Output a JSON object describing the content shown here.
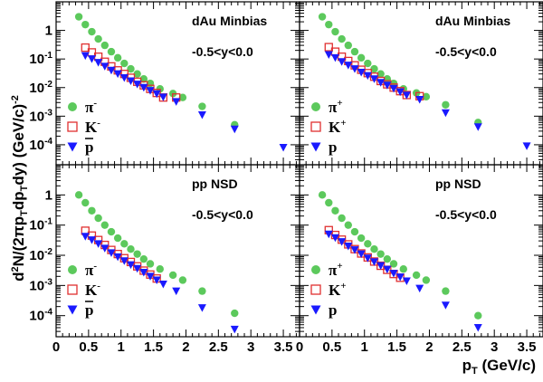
{
  "chart_data": {
    "type": "scatter",
    "yscale": "log",
    "xlim": [
      0,
      3.75
    ],
    "ylim": [
      2e-05,
      10
    ],
    "x_ticks": [
      "0",
      "0.5",
      "1",
      "1.5",
      "2",
      "2.5",
      "3",
      "3.5"
    ],
    "y_ticks": [
      {
        "value": 1,
        "base": "1",
        "exp": ""
      },
      {
        "value": 0.1,
        "base": "10",
        "exp": "-1"
      },
      {
        "value": 0.01,
        "base": "10",
        "exp": "-2"
      },
      {
        "value": 0.001,
        "base": "10",
        "exp": "-3"
      },
      {
        "value": 0.0001,
        "base": "10",
        "exp": "-4"
      }
    ],
    "xlabel": {
      "main": "p",
      "sub": "T",
      "rest": " (GeV/c)"
    },
    "ylabel": "d²N/(2πp_T dp_T dy) (GeV/c)⁻²",
    "colors": {
      "pion": "#5cc95c",
      "kaon": "#e03030",
      "proton": "#1a1aff"
    },
    "panels": [
      {
        "id": "dau-neg",
        "system": "dAu Minbias",
        "rapidity": "-0.5<y<0.0",
        "legend": [
          {
            "label": "π",
            "sup": "-",
            "bar": false,
            "marker": "circle",
            "species": "pion"
          },
          {
            "label": "K",
            "sup": "-",
            "bar": false,
            "marker": "square",
            "species": "kaon"
          },
          {
            "label": "p",
            "sup": "",
            "bar": true,
            "marker": "triangle",
            "species": "proton"
          }
        ],
        "series": [
          {
            "name": "π-",
            "marker": "circle",
            "species": "pion",
            "x": [
              0.35,
              0.45,
              0.55,
              0.65,
              0.75,
              0.85,
              0.95,
              1.05,
              1.15,
              1.25,
              1.35,
              1.45,
              1.6,
              1.8,
              1.95,
              2.25,
              2.75
            ],
            "y": [
              3.0,
              1.6,
              0.9,
              0.5,
              0.3,
              0.18,
              0.11,
              0.07,
              0.045,
              0.03,
              0.02,
              0.014,
              0.009,
              0.0062,
              0.0045,
              0.0022,
              0.0005
            ]
          },
          {
            "name": "K-",
            "marker": "square",
            "species": "kaon",
            "x": [
              0.45,
              0.55,
              0.65,
              0.75,
              0.85,
              0.95,
              1.05,
              1.15,
              1.25,
              1.35,
              1.45,
              1.55,
              1.65,
              1.85
            ],
            "y": [
              0.25,
              0.17,
              0.12,
              0.08,
              0.055,
              0.04,
              0.03,
              0.022,
              0.016,
              0.012,
              0.009,
              0.0065,
              0.0045,
              0.0045
            ]
          },
          {
            "name": "p̄",
            "marker": "triangle",
            "species": "proton",
            "x": [
              0.45,
              0.55,
              0.65,
              0.75,
              0.85,
              0.95,
              1.05,
              1.15,
              1.25,
              1.35,
              1.45,
              1.55,
              1.65,
              1.85,
              2.25,
              2.75,
              3.5
            ],
            "y": [
              0.13,
              0.1,
              0.075,
              0.055,
              0.04,
              0.03,
              0.022,
              0.017,
              0.013,
              0.01,
              0.0078,
              0.006,
              0.0046,
              0.0032,
              0.0011,
              0.00035,
              8e-05
            ]
          }
        ]
      },
      {
        "id": "dau-pos",
        "system": "dAu Minbias",
        "rapidity": "-0.5<y<0.0",
        "legend": [
          {
            "label": "π",
            "sup": "+",
            "bar": false,
            "marker": "circle",
            "species": "pion"
          },
          {
            "label": "K",
            "sup": "+",
            "bar": false,
            "marker": "square",
            "species": "kaon"
          },
          {
            "label": "p",
            "sup": "",
            "bar": false,
            "marker": "triangle",
            "species": "proton"
          }
        ],
        "series": [
          {
            "name": "π+",
            "marker": "circle",
            "species": "pion",
            "x": [
              0.35,
              0.45,
              0.55,
              0.65,
              0.75,
              0.85,
              0.95,
              1.05,
              1.15,
              1.25,
              1.35,
              1.45,
              1.6,
              1.8,
              1.95,
              2.25,
              2.75
            ],
            "y": [
              3.0,
              1.6,
              0.9,
              0.5,
              0.3,
              0.18,
              0.11,
              0.07,
              0.045,
              0.03,
              0.02,
              0.014,
              0.009,
              0.0065,
              0.0048,
              0.0025,
              0.0006
            ]
          },
          {
            "name": "K+",
            "marker": "square",
            "species": "kaon",
            "x": [
              0.45,
              0.55,
              0.65,
              0.75,
              0.85,
              0.95,
              1.05,
              1.15,
              1.25,
              1.35,
              1.45,
              1.55,
              1.65,
              1.85
            ],
            "y": [
              0.26,
              0.18,
              0.12,
              0.085,
              0.06,
              0.042,
              0.032,
              0.024,
              0.017,
              0.013,
              0.01,
              0.0075,
              0.0055,
              0.005
            ]
          },
          {
            "name": "p",
            "marker": "triangle",
            "species": "proton",
            "x": [
              0.45,
              0.55,
              0.65,
              0.75,
              0.85,
              0.95,
              1.05,
              1.15,
              1.25,
              1.35,
              1.45,
              1.55,
              1.65,
              1.85,
              2.25,
              2.75,
              3.5
            ],
            "y": [
              0.14,
              0.11,
              0.08,
              0.06,
              0.045,
              0.034,
              0.026,
              0.02,
              0.015,
              0.012,
              0.0092,
              0.007,
              0.0054,
              0.0038,
              0.0013,
              0.00042,
              9e-05
            ]
          }
        ]
      },
      {
        "id": "pp-neg",
        "system": "pp NSD",
        "rapidity": "-0.5<y<0.0",
        "legend": [
          {
            "label": "π",
            "sup": "-",
            "bar": false,
            "marker": "circle",
            "species": "pion"
          },
          {
            "label": "K",
            "sup": "-",
            "bar": false,
            "marker": "square",
            "species": "kaon"
          },
          {
            "label": "p",
            "sup": "",
            "bar": true,
            "marker": "triangle",
            "species": "proton"
          }
        ],
        "series": [
          {
            "name": "π-",
            "marker": "circle",
            "species": "pion",
            "x": [
              0.35,
              0.45,
              0.55,
              0.65,
              0.75,
              0.85,
              0.95,
              1.05,
              1.15,
              1.25,
              1.35,
              1.45,
              1.6,
              1.8,
              1.95,
              2.25,
              2.75
            ],
            "y": [
              1.0,
              0.55,
              0.3,
              0.17,
              0.1,
              0.06,
              0.037,
              0.024,
              0.016,
              0.011,
              0.0075,
              0.0052,
              0.0035,
              0.0022,
              0.0015,
              0.00065,
              0.00012
            ]
          },
          {
            "name": "K-",
            "marker": "square",
            "species": "kaon",
            "x": [
              0.45,
              0.55,
              0.65,
              0.75,
              0.85,
              0.95,
              1.05,
              1.15,
              1.25,
              1.35,
              1.45,
              1.55
            ],
            "y": [
              0.065,
              0.045,
              0.032,
              0.022,
              0.015,
              0.011,
              0.008,
              0.006,
              0.0043,
              0.0031,
              0.0023,
              0.0017
            ]
          },
          {
            "name": "p̄",
            "marker": "triangle",
            "species": "proton",
            "x": [
              0.45,
              0.55,
              0.65,
              0.75,
              0.85,
              0.95,
              1.05,
              1.15,
              1.25,
              1.35,
              1.45,
              1.55,
              1.65,
              1.85,
              2.25,
              2.75
            ],
            "y": [
              0.042,
              0.032,
              0.024,
              0.017,
              0.012,
              0.0088,
              0.0065,
              0.0048,
              0.0036,
              0.0027,
              0.002,
              0.0015,
              0.0011,
              0.00065,
              0.00018,
              3.5e-05
            ]
          }
        ]
      },
      {
        "id": "pp-pos",
        "system": "pp NSD",
        "rapidity": "-0.5<y<0.0",
        "legend": [
          {
            "label": "π",
            "sup": "+",
            "bar": false,
            "marker": "circle",
            "species": "pion"
          },
          {
            "label": "K",
            "sup": "+",
            "bar": false,
            "marker": "square",
            "species": "kaon"
          },
          {
            "label": "p",
            "sup": "",
            "bar": false,
            "marker": "triangle",
            "species": "proton"
          }
        ],
        "series": [
          {
            "name": "π+",
            "marker": "circle",
            "species": "pion",
            "x": [
              0.35,
              0.45,
              0.55,
              0.65,
              0.75,
              0.85,
              0.95,
              1.05,
              1.15,
              1.25,
              1.35,
              1.45,
              1.6,
              1.8,
              1.95,
              2.25,
              2.75
            ],
            "y": [
              1.0,
              0.55,
              0.3,
              0.17,
              0.1,
              0.06,
              0.037,
              0.024,
              0.016,
              0.011,
              0.0075,
              0.0052,
              0.0035,
              0.0022,
              0.0015,
              0.00065,
              0.0001
            ]
          },
          {
            "name": "K+",
            "marker": "square",
            "species": "kaon",
            "x": [
              0.45,
              0.55,
              0.65,
              0.75,
              0.85,
              0.95,
              1.05,
              1.15,
              1.25,
              1.35,
              1.45,
              1.55
            ],
            "y": [
              0.068,
              0.047,
              0.033,
              0.023,
              0.016,
              0.0115,
              0.0085,
              0.0062,
              0.0045,
              0.0033,
              0.0024,
              0.0018
            ]
          },
          {
            "name": "p",
            "marker": "triangle",
            "species": "proton",
            "x": [
              0.45,
              0.55,
              0.65,
              0.75,
              0.85,
              0.95,
              1.05,
              1.15,
              1.25,
              1.35,
              1.45,
              1.55,
              1.65,
              1.85,
              2.25,
              2.75
            ],
            "y": [
              0.05,
              0.038,
              0.028,
              0.02,
              0.015,
              0.011,
              0.008,
              0.006,
              0.0045,
              0.0034,
              0.0025,
              0.0019,
              0.0014,
              0.0008,
              0.00022,
              4e-05
            ]
          }
        ]
      }
    ]
  }
}
